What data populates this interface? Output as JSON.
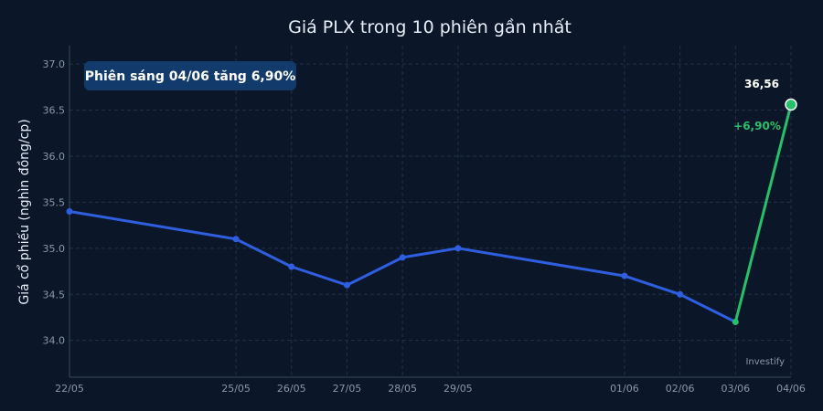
{
  "title": "Giá PLX trong 10 phiên gần nhất",
  "badge": "Phiên sáng 04/06 tăng 6,90%",
  "source": "Investify",
  "colors": {
    "background": "#0b1728",
    "line": "#2f5fe0",
    "up": "#27c06a",
    "badge_bg": "#123a6a"
  },
  "chart_data": {
    "type": "line",
    "title": "Giá PLX trong 10 phiên gần nhất",
    "xlabel": "",
    "ylabel": "Giá cổ phiếu (nghìn đồng/cp)",
    "x": [
      "2025-05-22",
      "2025-05-25",
      "2025-05-26",
      "2025-05-27",
      "2025-05-28",
      "2025-05-29",
      "2025-06-01",
      "2025-06-02",
      "2025-06-03",
      "2025-06-04"
    ],
    "x_labels": [
      "22/05",
      "25/05",
      "26/05",
      "27/05",
      "28/05",
      "29/05",
      "01/06",
      "02/06",
      "03/06",
      "04/06"
    ],
    "y": [
      35.4,
      35.1,
      34.8,
      34.6,
      34.9,
      35.0,
      34.7,
      34.5,
      34.2,
      36.56
    ],
    "ylim": [
      33.6,
      37.2
    ],
    "yticks": [
      34.0,
      34.5,
      35.0,
      35.5,
      36.0,
      36.5,
      37.0
    ],
    "ytick_labels": [
      "34.0",
      "34.5",
      "35.0",
      "35.5",
      "36.0",
      "36.5",
      "37.0"
    ],
    "grid": true,
    "last_value_label": "36,56",
    "change_label": "+6,90%"
  }
}
